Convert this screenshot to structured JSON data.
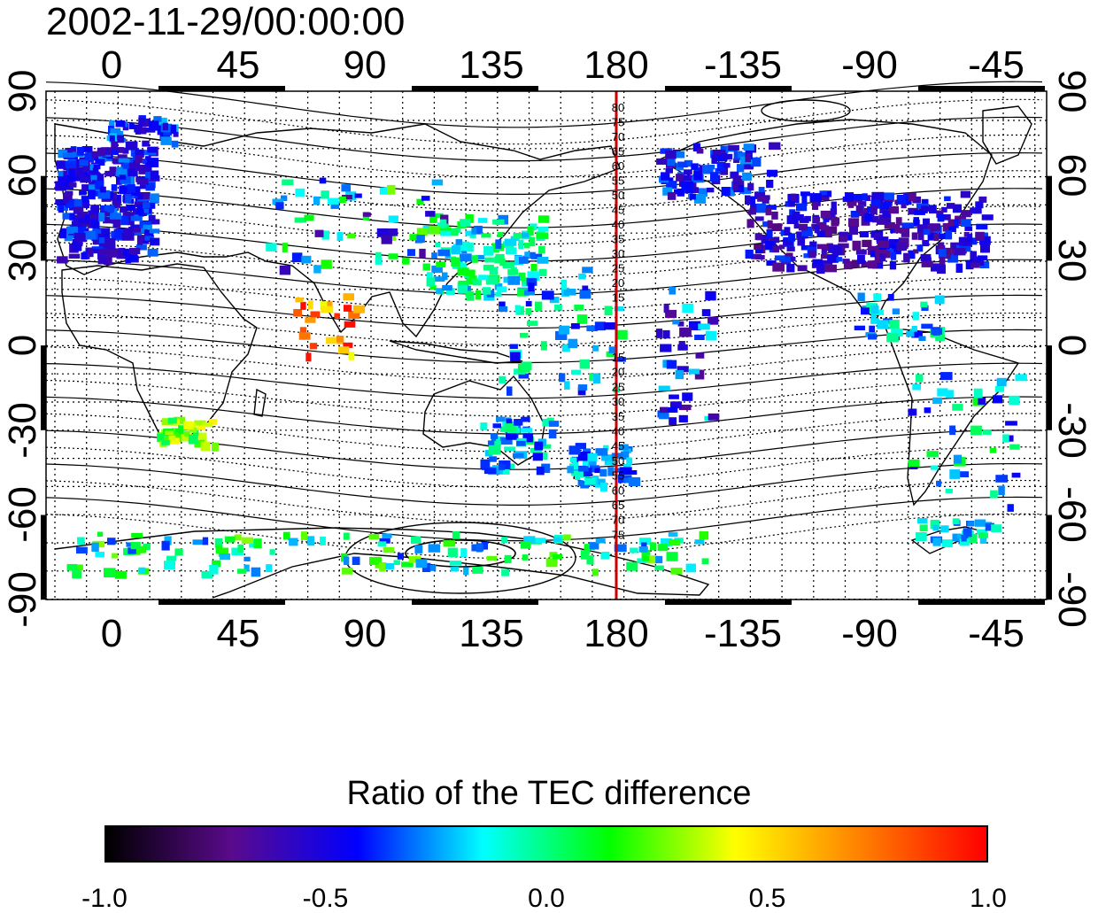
{
  "title": "2002-11-29/00:00:00",
  "map": {
    "lon_ticks_top": [
      "0",
      "45",
      "90",
      "135",
      "180",
      "-135",
      "-90",
      "-45"
    ],
    "lon_ticks_bottom": [
      "0",
      "45",
      "90",
      "135",
      "180",
      "-135",
      "-90",
      "-45"
    ],
    "lat_ticks_left": [
      "90",
      "60",
      "30",
      "0",
      "-30",
      "-60",
      "-90"
    ],
    "lat_ticks_right": [
      "90",
      "60",
      "30",
      "0",
      "-30",
      "-60",
      "-90"
    ],
    "meridian_line_color": "#cc0000",
    "contour_labels_north": [
      "80",
      "75",
      "70",
      "65",
      "60",
      "55",
      "50",
      "45",
      "40",
      "35",
      "30",
      "25",
      "20",
      "15"
    ],
    "contour_labels_south": [
      "15",
      "20",
      "25",
      "30",
      "35",
      "40",
      "45",
      "50",
      "55",
      "60",
      "65",
      "70",
      "75"
    ]
  },
  "colorbar": {
    "title": "Ratio of the TEC difference",
    "ticks": [
      "-1.0",
      "-0.5",
      "0.0",
      "0.5",
      "1.0"
    ],
    "stops": [
      "#000000",
      "#5a0a8c",
      "#0000ff",
      "#00ffff",
      "#00ff00",
      "#ffff00",
      "#ff8000",
      "#ff0000"
    ]
  }
}
